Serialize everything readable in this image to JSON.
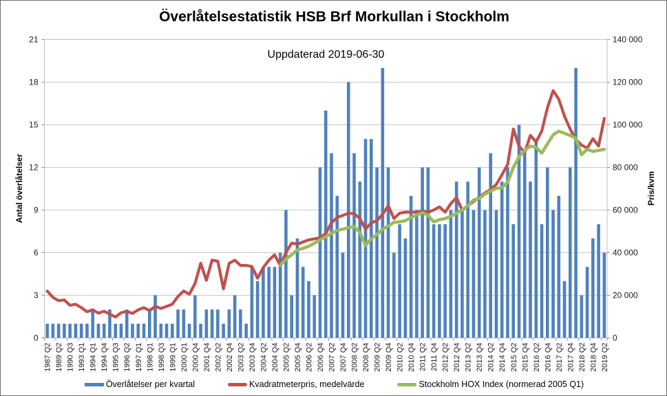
{
  "title": "Överlåtelsestatistik HSB Brf Morkullan i Stockholm",
  "subtitle": "Uppdaterad 2019-06-30",
  "axes": {
    "left": {
      "title": "Antal överlåtelser",
      "ticks": [
        "0",
        "3",
        "6",
        "9",
        "12",
        "15",
        "18",
        "21"
      ],
      "lim": [
        0,
        21
      ]
    },
    "right": {
      "title": "Pris/kvm",
      "ticks": [
        "0",
        "20 000",
        "40 000",
        "60 000",
        "80 000",
        "100 000",
        "120 000",
        "140 000"
      ],
      "lim": [
        0,
        140000
      ]
    }
  },
  "legend": [
    {
      "label": "Överlåtelser per kvartal",
      "color": "#4F81BD",
      "marker": "bar"
    },
    {
      "label": "Kvadratmeterpris, medelvärde",
      "color": "#C0504D",
      "marker": "line"
    },
    {
      "label": "Stockholm HOX Index (normerad 2005 Q1)",
      "color": "#9BBB59",
      "marker": "line"
    }
  ],
  "chart_data": {
    "type": "bar",
    "subtype": "bar+line combo, dual axis",
    "grid": true,
    "legend_position": "bottom",
    "left_ylim": [
      0,
      21
    ],
    "right_ylim": [
      0,
      140000
    ],
    "categories": [
      "1987 Q2",
      "",
      "1989 Q2",
      "",
      "1990 Q3",
      "",
      "1993 Q1",
      "",
      "1994 Q1",
      "",
      "1994 Q4",
      "",
      "1995 Q3",
      "",
      "1996 Q2",
      "",
      "1997 Q1",
      "",
      "1998 Q1",
      "",
      "1998 Q3",
      "",
      "1999 Q1",
      "",
      "2000 Q1",
      "",
      "2000 Q4",
      "",
      "2001 Q4",
      "",
      "2002 Q2",
      "",
      "2002 Q4",
      "",
      "2003 Q2",
      "",
      "2003 Q4",
      "",
      "2004 Q2",
      "",
      "2004 Q4",
      "",
      "2005 Q2",
      "",
      "2005 Q4",
      "",
      "2006 Q2",
      "",
      "2006 Q4",
      "",
      "2007 Q2",
      "",
      "2007 Q4",
      "",
      "2008 Q2",
      "",
      "2008 Q4",
      "",
      "2009 Q2",
      "",
      "2009 Q4",
      "",
      "2010 Q2",
      "",
      "2010 Q4",
      "",
      "2011 Q2",
      "",
      "2011 Q4",
      "",
      "2012 Q2",
      "",
      "2012 Q4",
      "",
      "2013 Q2",
      "",
      "2013 Q4",
      "",
      "2014 Q2",
      "",
      "2014 Q4",
      "",
      "2015 Q2",
      "",
      "2015 Q4",
      "",
      "2016 Q2",
      "",
      "2016 Q4",
      "",
      "2017 Q2",
      "",
      "2017 Q4",
      "",
      "2018 Q2",
      "",
      "2018 Q4",
      "",
      "2019 Q2"
    ],
    "series": [
      {
        "name": "Överlåtelser per kvartal",
        "type": "bar",
        "axis": "left",
        "color": "#4F81BD",
        "values": [
          1,
          1,
          1,
          1,
          1,
          1,
          1,
          1,
          2,
          1,
          1,
          2,
          1,
          1,
          2,
          1,
          1,
          1,
          2,
          3,
          1,
          1,
          1,
          2,
          2,
          1,
          3,
          1,
          2,
          2,
          2,
          1,
          2,
          3,
          2,
          1,
          5,
          4,
          5,
          5,
          5,
          6,
          9,
          3,
          7,
          5,
          4,
          3,
          12,
          16,
          13,
          10,
          6,
          18,
          13,
          11,
          14,
          14,
          12,
          19,
          12,
          6,
          8,
          7,
          10,
          9,
          12,
          12,
          8,
          8,
          8,
          9,
          11,
          9,
          11,
          9,
          12,
          9,
          13,
          9,
          11,
          12,
          8,
          15,
          13,
          11,
          14,
          8,
          12,
          9,
          10,
          4,
          12,
          19,
          3,
          5,
          7,
          8,
          6
        ]
      },
      {
        "name": "Kvadratmeterpris, medelvärde",
        "type": "line",
        "axis": "right",
        "color": "#C0504D",
        "values": [
          22000,
          19000,
          17500,
          17800,
          15300,
          15800,
          14200,
          12300,
          13200,
          11600,
          12500,
          11200,
          9800,
          11800,
          12500,
          11500,
          13200,
          14200,
          12800,
          14800,
          13800,
          14800,
          15800,
          19500,
          22000,
          20500,
          25500,
          35000,
          27000,
          36500,
          36000,
          23000,
          35000,
          36500,
          34000,
          34000,
          33500,
          28000,
          33000,
          36500,
          39000,
          34000,
          40000,
          44500,
          44000,
          45000,
          46000,
          46500,
          47000,
          49000,
          54000,
          56500,
          57500,
          58500,
          58300,
          56000,
          51000,
          54000,
          55000,
          58000,
          62000,
          56000,
          58500,
          59000,
          59000,
          59000,
          59500,
          59000,
          60000,
          61500,
          59000,
          63000,
          65800,
          60000,
          62000,
          64000,
          66000,
          68000,
          69600,
          72000,
          76500,
          81400,
          98000,
          90000,
          87000,
          95000,
          92000,
          97000,
          108000,
          116000,
          112000,
          104000,
          98000,
          93000,
          90500,
          89000,
          93500,
          90000,
          103000
        ]
      },
      {
        "name": "Stockholm HOX Index (normerad 2005 Q1)",
        "type": "line",
        "axis": "right",
        "color": "#9BBB59",
        "values": [
          null,
          null,
          null,
          null,
          null,
          null,
          null,
          null,
          null,
          null,
          null,
          null,
          null,
          null,
          null,
          null,
          null,
          null,
          null,
          null,
          null,
          null,
          null,
          null,
          null,
          null,
          null,
          null,
          null,
          null,
          null,
          null,
          null,
          null,
          null,
          null,
          null,
          null,
          null,
          null,
          null,
          34000,
          37000,
          39000,
          41300,
          42000,
          43000,
          44500,
          46000,
          47500,
          49000,
          50500,
          51000,
          51800,
          52200,
          49500,
          43300,
          46500,
          48500,
          51000,
          52500,
          54200,
          54500,
          55000,
          56500,
          57600,
          58800,
          57500,
          54500,
          55500,
          56000,
          57000,
          58500,
          60000,
          62000,
          64700,
          65500,
          67500,
          68900,
          70200,
          70500,
          73000,
          80000,
          85000,
          88000,
          90000,
          89500,
          86700,
          91000,
          95300,
          97000,
          96000,
          95000,
          93700,
          86000,
          88500,
          87500,
          88000,
          88500
        ]
      }
    ]
  }
}
